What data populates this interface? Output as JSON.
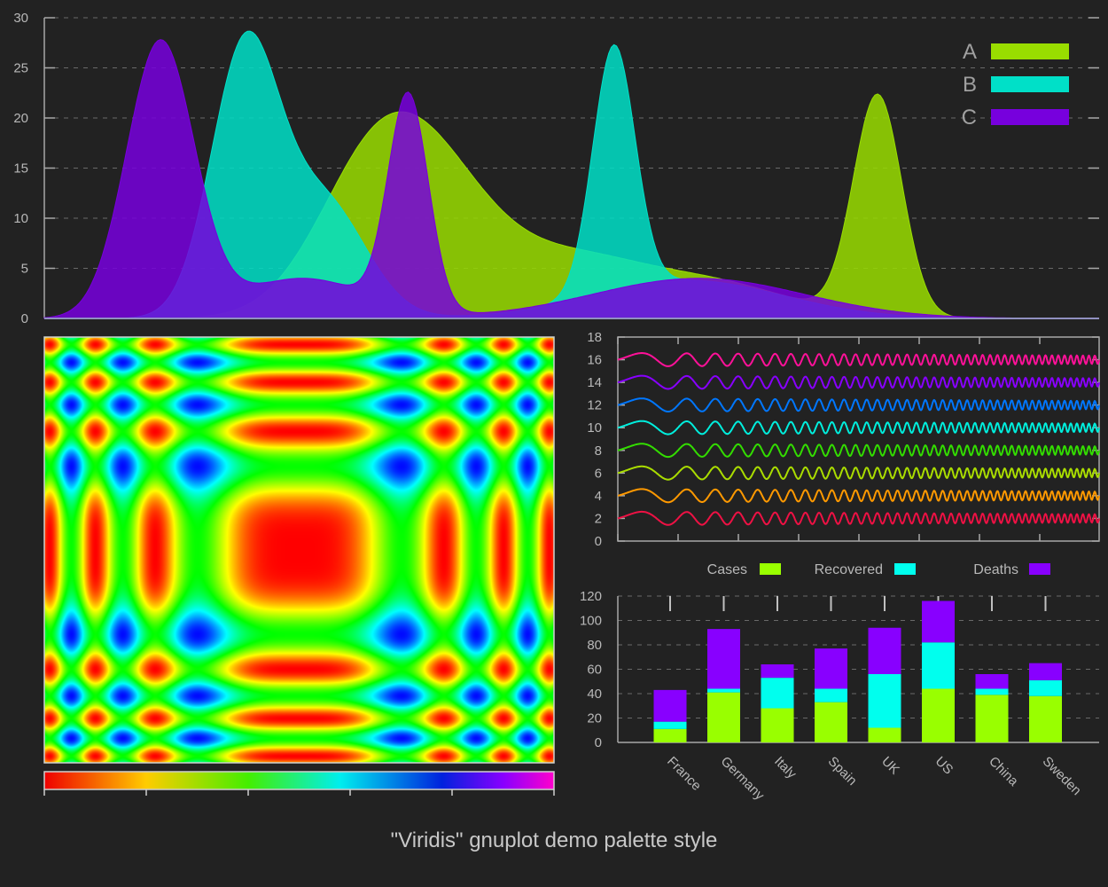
{
  "caption": "\"Viridis\" gnuplot demo palette style",
  "colors": {
    "background": "#222222",
    "axis": "#a8a8a8",
    "A": "#99dd00",
    "B": "#00e0c8",
    "C": "#7700dd",
    "cases": "#99ff00",
    "recovered": "#00ffee",
    "deaths": "#8800ff"
  },
  "chart_data": [
    {
      "type": "area",
      "ylim": [
        0,
        30
      ],
      "y_ticks": [
        "0",
        "5",
        "10",
        "15",
        "20",
        "25",
        "30"
      ],
      "grid": true,
      "legend_position": "top-right",
      "series": [
        {
          "name": "A",
          "peaks": [
            {
              "x": 0.31,
              "h": 12.5,
              "w": 0.055
            },
            {
              "x": 0.375,
              "h": 11.5,
              "w": 0.06
            },
            {
              "x": 0.5,
              "h": 4.5,
              "w": 0.06
            },
            {
              "x": 0.62,
              "h": 3.8,
              "w": 0.08
            },
            {
              "x": 0.79,
              "h": 22,
              "w": 0.023
            }
          ]
        },
        {
          "name": "B",
          "peaks": [
            {
              "x": 0.19,
              "h": 26.5,
              "w": 0.032
            },
            {
              "x": 0.265,
              "h": 11.5,
              "w": 0.04
            },
            {
              "x": 0.54,
              "h": 24.5,
              "w": 0.02
            },
            {
              "x": 0.61,
              "h": 3.8,
              "w": 0.09
            }
          ]
        },
        {
          "name": "C",
          "peaks": [
            {
              "x": 0.11,
              "h": 27.5,
              "w": 0.032
            },
            {
              "x": 0.245,
              "h": 4,
              "w": 0.06
            },
            {
              "x": 0.345,
              "h": 21.5,
              "w": 0.019
            },
            {
              "x": 0.62,
              "h": 4,
              "w": 0.1
            }
          ]
        }
      ]
    },
    {
      "type": "heatmap",
      "palette": "rainbow",
      "description_function": "sin(sqrt(x^2+y^2)) style interference pattern",
      "colorbar": true
    },
    {
      "type": "line",
      "ylim": [
        0,
        18
      ],
      "y_ticks": [
        "0",
        "2",
        "4",
        "6",
        "8",
        "10",
        "12",
        "14",
        "16",
        "18"
      ],
      "series_offsets": [
        2,
        4,
        6,
        8,
        10,
        12,
        14,
        16
      ],
      "series_colors": [
        "#ee1144",
        "#ff8800",
        "#aadd00",
        "#33dd00",
        "#00ee88",
        "#00ddff",
        "#0077ff",
        "#8800ff",
        "#ff00aa"
      ],
      "amplitude": 0.6
    },
    {
      "type": "bar",
      "stacked": true,
      "categories": [
        "France",
        "Germany",
        "Italy",
        "Spain",
        "UK",
        "US",
        "China",
        "Sweden"
      ],
      "ylim": [
        0,
        120
      ],
      "y_ticks": [
        "0",
        "20",
        "40",
        "60",
        "80",
        "100",
        "120"
      ],
      "grid": true,
      "legend_position": "top",
      "series": [
        {
          "name": "Cases",
          "values": [
            11,
            41,
            28,
            33,
            12,
            44,
            39,
            38
          ]
        },
        {
          "name": "Recovered",
          "values": [
            6,
            3,
            25,
            11,
            44,
            38,
            5,
            13
          ]
        },
        {
          "name": "Deaths",
          "values": [
            26,
            49,
            11,
            33,
            38,
            34,
            12,
            14
          ]
        }
      ]
    }
  ]
}
